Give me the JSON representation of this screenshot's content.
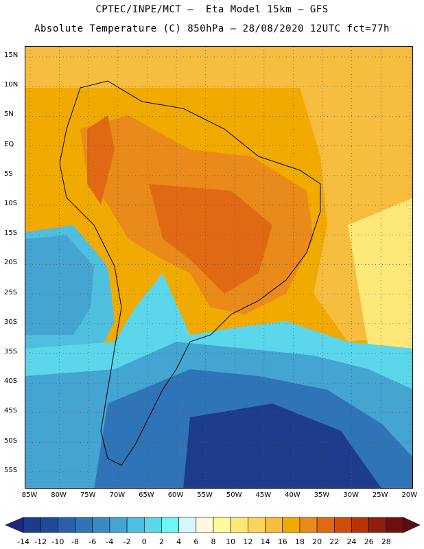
{
  "header": {
    "line1": "CPTEC/INPE/MCT –  Eta Model 15km – GFS",
    "line2": "Absolute Temperature (C) 850hPa – 28/08/2020 12UTC fct=77h"
  },
  "map": {
    "lat_ticks": [
      "15N",
      "10N",
      "5N",
      "EQ",
      "5S",
      "10S",
      "15S",
      "20S",
      "25S",
      "30S",
      "35S",
      "40S",
      "45S",
      "50S",
      "55S"
    ],
    "lon_ticks": [
      "85W",
      "80W",
      "75W",
      "70W",
      "65W",
      "60W",
      "55W",
      "50W",
      "45W",
      "40W",
      "35W",
      "30W",
      "25W",
      "20W"
    ],
    "grid": "dotted",
    "region": "South America"
  },
  "colorbar": {
    "labels": [
      "-14",
      "-12",
      "-10",
      "-8",
      "-6",
      "-4",
      "-2",
      "0",
      "2",
      "4",
      "6",
      "8",
      "10",
      "12",
      "14",
      "16",
      "18",
      "20",
      "22",
      "24",
      "26",
      "28"
    ],
    "colors": [
      "#1e3c8c",
      "#1f4a99",
      "#2a5ea8",
      "#2f74b6",
      "#3a8bc4",
      "#44a4d2",
      "#4fbfdf",
      "#5cd6ea",
      "#6ff5f5",
      "#d4f7fb",
      "#fff7e0",
      "#fffa9a",
      "#fde878",
      "#fbd45c",
      "#f6bd3e",
      "#f1aa00",
      "#e98a1a",
      "#e06a14",
      "#cf4e0c",
      "#b5340a",
      "#8f1e0e",
      "#6e1010"
    ]
  }
}
